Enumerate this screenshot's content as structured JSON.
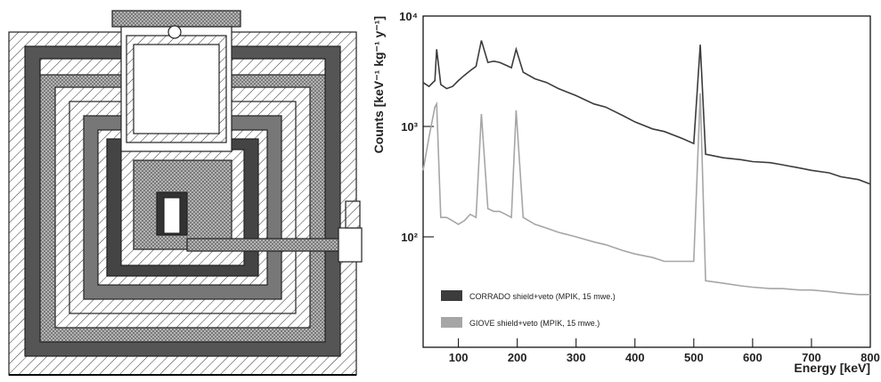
{
  "chart_data": {
    "type": "line",
    "x_label": "Energy [keV]",
    "y_label": "Counts [keV⁻¹ kg⁻¹ y⁻¹]",
    "xlim": [
      40,
      800
    ],
    "xticks": [
      100,
      200,
      300,
      400,
      500,
      600,
      700,
      800
    ],
    "ylim": [
      10,
      10000
    ],
    "log_y": true,
    "yticks": [
      {
        "value": 100,
        "label": "10²"
      },
      {
        "value": 1000,
        "label": "10³"
      },
      {
        "value": 10000,
        "label": "10⁴"
      }
    ],
    "legend_position": "lower left",
    "x": [
      40,
      50,
      60,
      63,
      70,
      80,
      90,
      100,
      110,
      120,
      130,
      139,
      150,
      160,
      170,
      180,
      190,
      198,
      210,
      230,
      250,
      270,
      300,
      330,
      350,
      380,
      400,
      430,
      450,
      480,
      500,
      511,
      520,
      550,
      580,
      600,
      630,
      650,
      680,
      700,
      730,
      750,
      780,
      800
    ],
    "series": [
      {
        "name": "CORRADO shield+veto (MPIK, 15 mwe.)",
        "color": "#3c3c3c",
        "values": [
          2500,
          2300,
          2600,
          5000,
          2400,
          2200,
          2300,
          2600,
          2900,
          3200,
          3500,
          6000,
          3800,
          3900,
          3800,
          3600,
          3400,
          5000,
          3100,
          2700,
          2500,
          2200,
          1900,
          1600,
          1500,
          1250,
          1100,
          950,
          900,
          780,
          700,
          5500,
          560,
          520,
          500,
          480,
          470,
          450,
          420,
          400,
          380,
          350,
          330,
          300
        ]
      },
      {
        "name": "GIOVE shield+veto (MPIK, 15 mwe.)",
        "color": "#a6a6a6",
        "values": [
          400,
          800,
          1500,
          1600,
          150,
          150,
          140,
          130,
          140,
          160,
          150,
          1300,
          180,
          170,
          170,
          160,
          150,
          1400,
          150,
          130,
          120,
          110,
          100,
          90,
          85,
          75,
          70,
          65,
          60,
          60,
          60,
          2000,
          40,
          38,
          36,
          35,
          34,
          34,
          33,
          33,
          32,
          31,
          30,
          30
        ]
      }
    ]
  }
}
